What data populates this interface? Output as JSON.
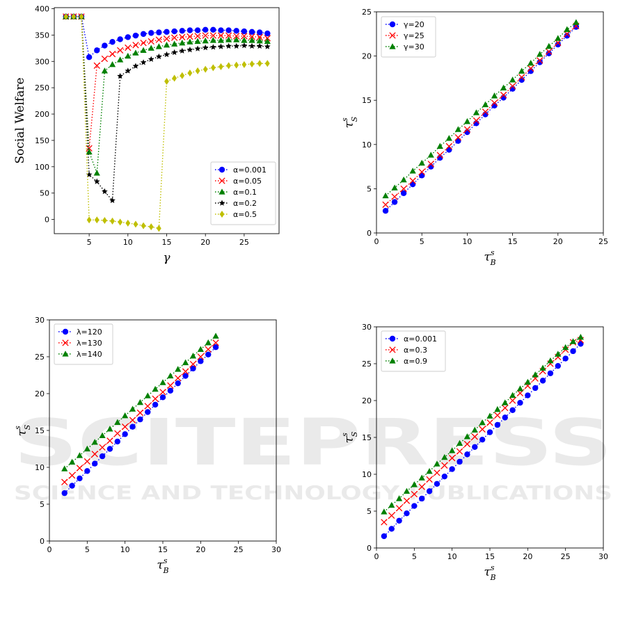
{
  "watermark": {
    "line1": "SCITEPRESS",
    "line2": "SCIENCE AND TECHNOLOGY PUBLICATIONS",
    "color": "#d9d9d9"
  },
  "chart_data": [
    {
      "type": "scatter",
      "title": "",
      "xlabel": "γ",
      "ylabel": "Social Welfare",
      "xlim": [
        0.5,
        29.5
      ],
      "ylim": [
        -27,
        402
      ],
      "xticks": [
        5,
        10,
        15,
        20,
        25
      ],
      "yticks": [
        0,
        50,
        100,
        150,
        200,
        250,
        300,
        350,
        400
      ],
      "grid": false,
      "legend_position": "bottom-right",
      "series": [
        {
          "name": "α=0.001",
          "color": "#0000ff",
          "marker": "circle",
          "x": [
            2,
            3,
            4,
            5,
            6,
            7,
            8,
            9,
            10,
            11,
            12,
            13,
            14,
            15,
            16,
            17,
            18,
            19,
            20,
            21,
            22,
            23,
            24,
            25,
            26,
            27,
            28
          ],
          "y": [
            385,
            385,
            385,
            308,
            321,
            330,
            337,
            342,
            346,
            349,
            352,
            354,
            355,
            356,
            357,
            358,
            359,
            359,
            360,
            360,
            359,
            359,
            358,
            357,
            356,
            355,
            353
          ]
        },
        {
          "name": "α=0.05",
          "color": "#ff0000",
          "marker": "x",
          "x": [
            2,
            3,
            4,
            5,
            6,
            7,
            8,
            9,
            10,
            11,
            12,
            13,
            14,
            15,
            16,
            17,
            18,
            19,
            20,
            21,
            22,
            23,
            24,
            25,
            26,
            27,
            28
          ],
          "y": [
            385,
            385,
            385,
            135,
            292,
            305,
            314,
            321,
            326,
            331,
            335,
            338,
            341,
            343,
            345,
            346,
            347,
            348,
            349,
            349,
            349,
            349,
            348,
            348,
            347,
            346,
            344
          ]
        },
        {
          "name": "α=0.1",
          "color": "#008000",
          "marker": "triangle",
          "x": [
            2,
            3,
            4,
            5,
            6,
            7,
            8,
            9,
            10,
            11,
            12,
            13,
            14,
            15,
            16,
            17,
            18,
            19,
            20,
            21,
            22,
            23,
            24,
            25,
            26,
            27,
            28
          ],
          "y": [
            385,
            385,
            385,
            128,
            88,
            282,
            294,
            303,
            310,
            316,
            321,
            325,
            328,
            331,
            333,
            335,
            337,
            338,
            339,
            340,
            340,
            341,
            341,
            340,
            340,
            339,
            338
          ]
        },
        {
          "name": "α=0.2",
          "color": "#000000",
          "marker": "star",
          "x": [
            2,
            3,
            4,
            5,
            6,
            7,
            8,
            9,
            10,
            11,
            12,
            13,
            14,
            15,
            16,
            17,
            18,
            19,
            20,
            21,
            22,
            23,
            24,
            25,
            26,
            27,
            28
          ],
          "y": [
            385,
            385,
            385,
            85,
            72,
            53,
            36,
            272,
            282,
            291,
            298,
            304,
            309,
            313,
            317,
            320,
            322,
            324,
            326,
            327,
            328,
            329,
            329,
            330,
            329,
            329,
            328
          ]
        },
        {
          "name": "α=0.5",
          "color": "#bfbf00",
          "marker": "diamond",
          "x": [
            2,
            3,
            4,
            5,
            6,
            7,
            8,
            9,
            10,
            11,
            12,
            13,
            14,
            15,
            16,
            17,
            18,
            19,
            20,
            21,
            22,
            23,
            24,
            25,
            26,
            27,
            28
          ],
          "y": [
            385,
            385,
            385,
            -1,
            -1,
            -2,
            -3,
            -5,
            -7,
            -9,
            -12,
            -14,
            -17,
            262,
            268,
            273,
            278,
            282,
            285,
            288,
            290,
            292,
            293,
            294,
            295,
            296,
            296
          ]
        }
      ]
    },
    {
      "type": "scatter",
      "title": "",
      "xlabel": "τ_B^s",
      "ylabel": "τ_S^s",
      "xlim": [
        0,
        25
      ],
      "ylim": [
        0,
        25
      ],
      "xticks": [
        0,
        5,
        10,
        15,
        20,
        25
      ],
      "yticks": [
        0,
        5,
        10,
        15,
        20,
        25
      ],
      "grid": false,
      "legend_position": "top-left",
      "series": [
        {
          "name": "γ=20",
          "color": "#0000ff",
          "marker": "circle",
          "x": [
            1,
            2,
            3,
            4,
            5,
            6,
            7,
            8,
            9,
            10,
            11,
            12,
            13,
            14,
            15,
            16,
            17,
            18,
            19,
            20,
            21,
            22
          ],
          "y": [
            2.5,
            3.5,
            4.5,
            5.5,
            6.5,
            7.5,
            8.5,
            9.4,
            10.4,
            11.4,
            12.4,
            13.4,
            14.4,
            15.3,
            16.3,
            17.3,
            18.3,
            19.3,
            20.3,
            21.3,
            22.3,
            23.3
          ]
        },
        {
          "name": "γ=25",
          "color": "#ff0000",
          "marker": "x",
          "x": [
            1,
            2,
            3,
            4,
            5,
            6,
            7,
            8,
            9,
            10,
            11,
            12,
            13,
            14,
            15,
            16,
            17,
            18,
            19,
            20,
            21,
            22
          ],
          "y": [
            3.2,
            4.1,
            5.0,
            5.9,
            6.9,
            7.8,
            8.8,
            9.8,
            10.8,
            11.7,
            12.7,
            13.7,
            14.7,
            15.6,
            16.6,
            17.6,
            18.6,
            19.5,
            20.5,
            21.5,
            22.5,
            23.4
          ]
        },
        {
          "name": "γ=30",
          "color": "#008000",
          "marker": "triangle",
          "x": [
            1,
            2,
            3,
            4,
            5,
            6,
            7,
            8,
            9,
            10,
            11,
            12,
            13,
            14,
            15,
            16,
            17,
            18,
            19,
            20,
            21,
            22
          ],
          "y": [
            4.2,
            5.1,
            6.0,
            7.0,
            7.9,
            8.8,
            9.8,
            10.7,
            11.7,
            12.6,
            13.6,
            14.5,
            15.5,
            16.4,
            17.3,
            18.3,
            19.2,
            20.2,
            21.1,
            22.0,
            23.0,
            23.8
          ]
        }
      ]
    },
    {
      "type": "scatter",
      "title": "",
      "xlabel": "τ_B^s",
      "ylabel": "τ_S^s",
      "xlim": [
        0,
        30
      ],
      "ylim": [
        0,
        30
      ],
      "xticks": [
        0,
        5,
        10,
        15,
        20,
        25,
        30
      ],
      "yticks": [
        0,
        5,
        10,
        15,
        20,
        25,
        30
      ],
      "grid": false,
      "legend_position": "top-left",
      "series": [
        {
          "name": "λ=120",
          "color": "#0000ff",
          "marker": "circle",
          "x": [
            2,
            3,
            4,
            5,
            6,
            7,
            8,
            9,
            10,
            11,
            12,
            13,
            14,
            15,
            16,
            17,
            18,
            19,
            20,
            21,
            22
          ],
          "y": [
            6.5,
            7.5,
            8.5,
            9.5,
            10.5,
            11.5,
            12.5,
            13.5,
            14.5,
            15.5,
            16.5,
            17.5,
            18.5,
            19.5,
            20.4,
            21.4,
            22.4,
            23.4,
            24.4,
            25.3,
            26.3
          ]
        },
        {
          "name": "λ=130",
          "color": "#ff0000",
          "marker": "x",
          "x": [
            2,
            3,
            4,
            5,
            6,
            7,
            8,
            9,
            10,
            11,
            12,
            13,
            14,
            15,
            16,
            17,
            18,
            19,
            20,
            21,
            22
          ],
          "y": [
            8.0,
            8.9,
            9.9,
            10.8,
            11.8,
            12.7,
            13.6,
            14.6,
            15.5,
            16.4,
            17.4,
            18.3,
            19.3,
            20.2,
            21.1,
            22.1,
            23.0,
            24.0,
            25.0,
            26.0,
            26.9
          ]
        },
        {
          "name": "λ=140",
          "color": "#008000",
          "marker": "triangle",
          "x": [
            2,
            3,
            4,
            5,
            6,
            7,
            8,
            9,
            10,
            11,
            12,
            13,
            14,
            15,
            16,
            17,
            18,
            19,
            20,
            21,
            22
          ],
          "y": [
            9.8,
            10.7,
            11.6,
            12.5,
            13.4,
            14.3,
            15.2,
            16.1,
            17.0,
            17.9,
            18.8,
            19.7,
            20.6,
            21.5,
            22.4,
            23.3,
            24.2,
            25.1,
            26.0,
            26.9,
            27.8
          ]
        }
      ]
    },
    {
      "type": "scatter",
      "title": "",
      "xlabel": "τ_B^s",
      "ylabel": "τ_S^s",
      "xlim": [
        0,
        30
      ],
      "ylim": [
        0,
        30
      ],
      "xticks": [
        0,
        5,
        10,
        15,
        20,
        25,
        30
      ],
      "yticks": [
        0,
        5,
        10,
        15,
        20,
        25,
        30
      ],
      "grid": false,
      "legend_position": "top-left",
      "series": [
        {
          "name": "α=0.001",
          "color": "#0000ff",
          "marker": "circle",
          "x": [
            1,
            2,
            3,
            4,
            5,
            6,
            7,
            8,
            9,
            10,
            11,
            12,
            13,
            14,
            15,
            16,
            17,
            18,
            19,
            20,
            21,
            22,
            23,
            24,
            25,
            26,
            27
          ],
          "y": [
            1.6,
            2.6,
            3.7,
            4.7,
            5.7,
            6.7,
            7.7,
            8.7,
            9.7,
            10.7,
            11.7,
            12.7,
            13.7,
            14.7,
            15.7,
            16.7,
            17.7,
            18.7,
            19.7,
            20.7,
            21.7,
            22.7,
            23.7,
            24.7,
            25.7,
            26.7,
            27.7
          ]
        },
        {
          "name": "α=0.3",
          "color": "#ff0000",
          "marker": "x",
          "x": [
            1,
            2,
            3,
            4,
            5,
            6,
            7,
            8,
            9,
            10,
            11,
            12,
            13,
            14,
            15,
            16,
            17,
            18,
            19,
            20,
            21,
            22,
            23,
            24,
            25,
            26,
            27
          ],
          "y": [
            3.5,
            4.4,
            5.4,
            6.4,
            7.3,
            8.3,
            9.3,
            10.2,
            11.2,
            12.2,
            13.1,
            14.1,
            15.1,
            16.1,
            17.0,
            18.0,
            19.0,
            20.0,
            21.0,
            22.0,
            23.0,
            24.0,
            25.0,
            25.9,
            26.9,
            27.9,
            28.2
          ]
        },
        {
          "name": "α=0.9",
          "color": "#008000",
          "marker": "triangle",
          "x": [
            1,
            2,
            3,
            4,
            5,
            6,
            7,
            8,
            9,
            10,
            11,
            12,
            13,
            14,
            15,
            16,
            17,
            18,
            19,
            20,
            21,
            22,
            23,
            24,
            25,
            26,
            27
          ],
          "y": [
            4.9,
            5.8,
            6.7,
            7.7,
            8.6,
            9.5,
            10.4,
            11.4,
            12.3,
            13.2,
            14.2,
            15.1,
            16.0,
            17.0,
            17.9,
            18.8,
            19.7,
            20.7,
            21.6,
            22.5,
            23.5,
            24.4,
            25.4,
            26.3,
            27.2,
            28.0,
            28.6
          ]
        }
      ]
    }
  ]
}
